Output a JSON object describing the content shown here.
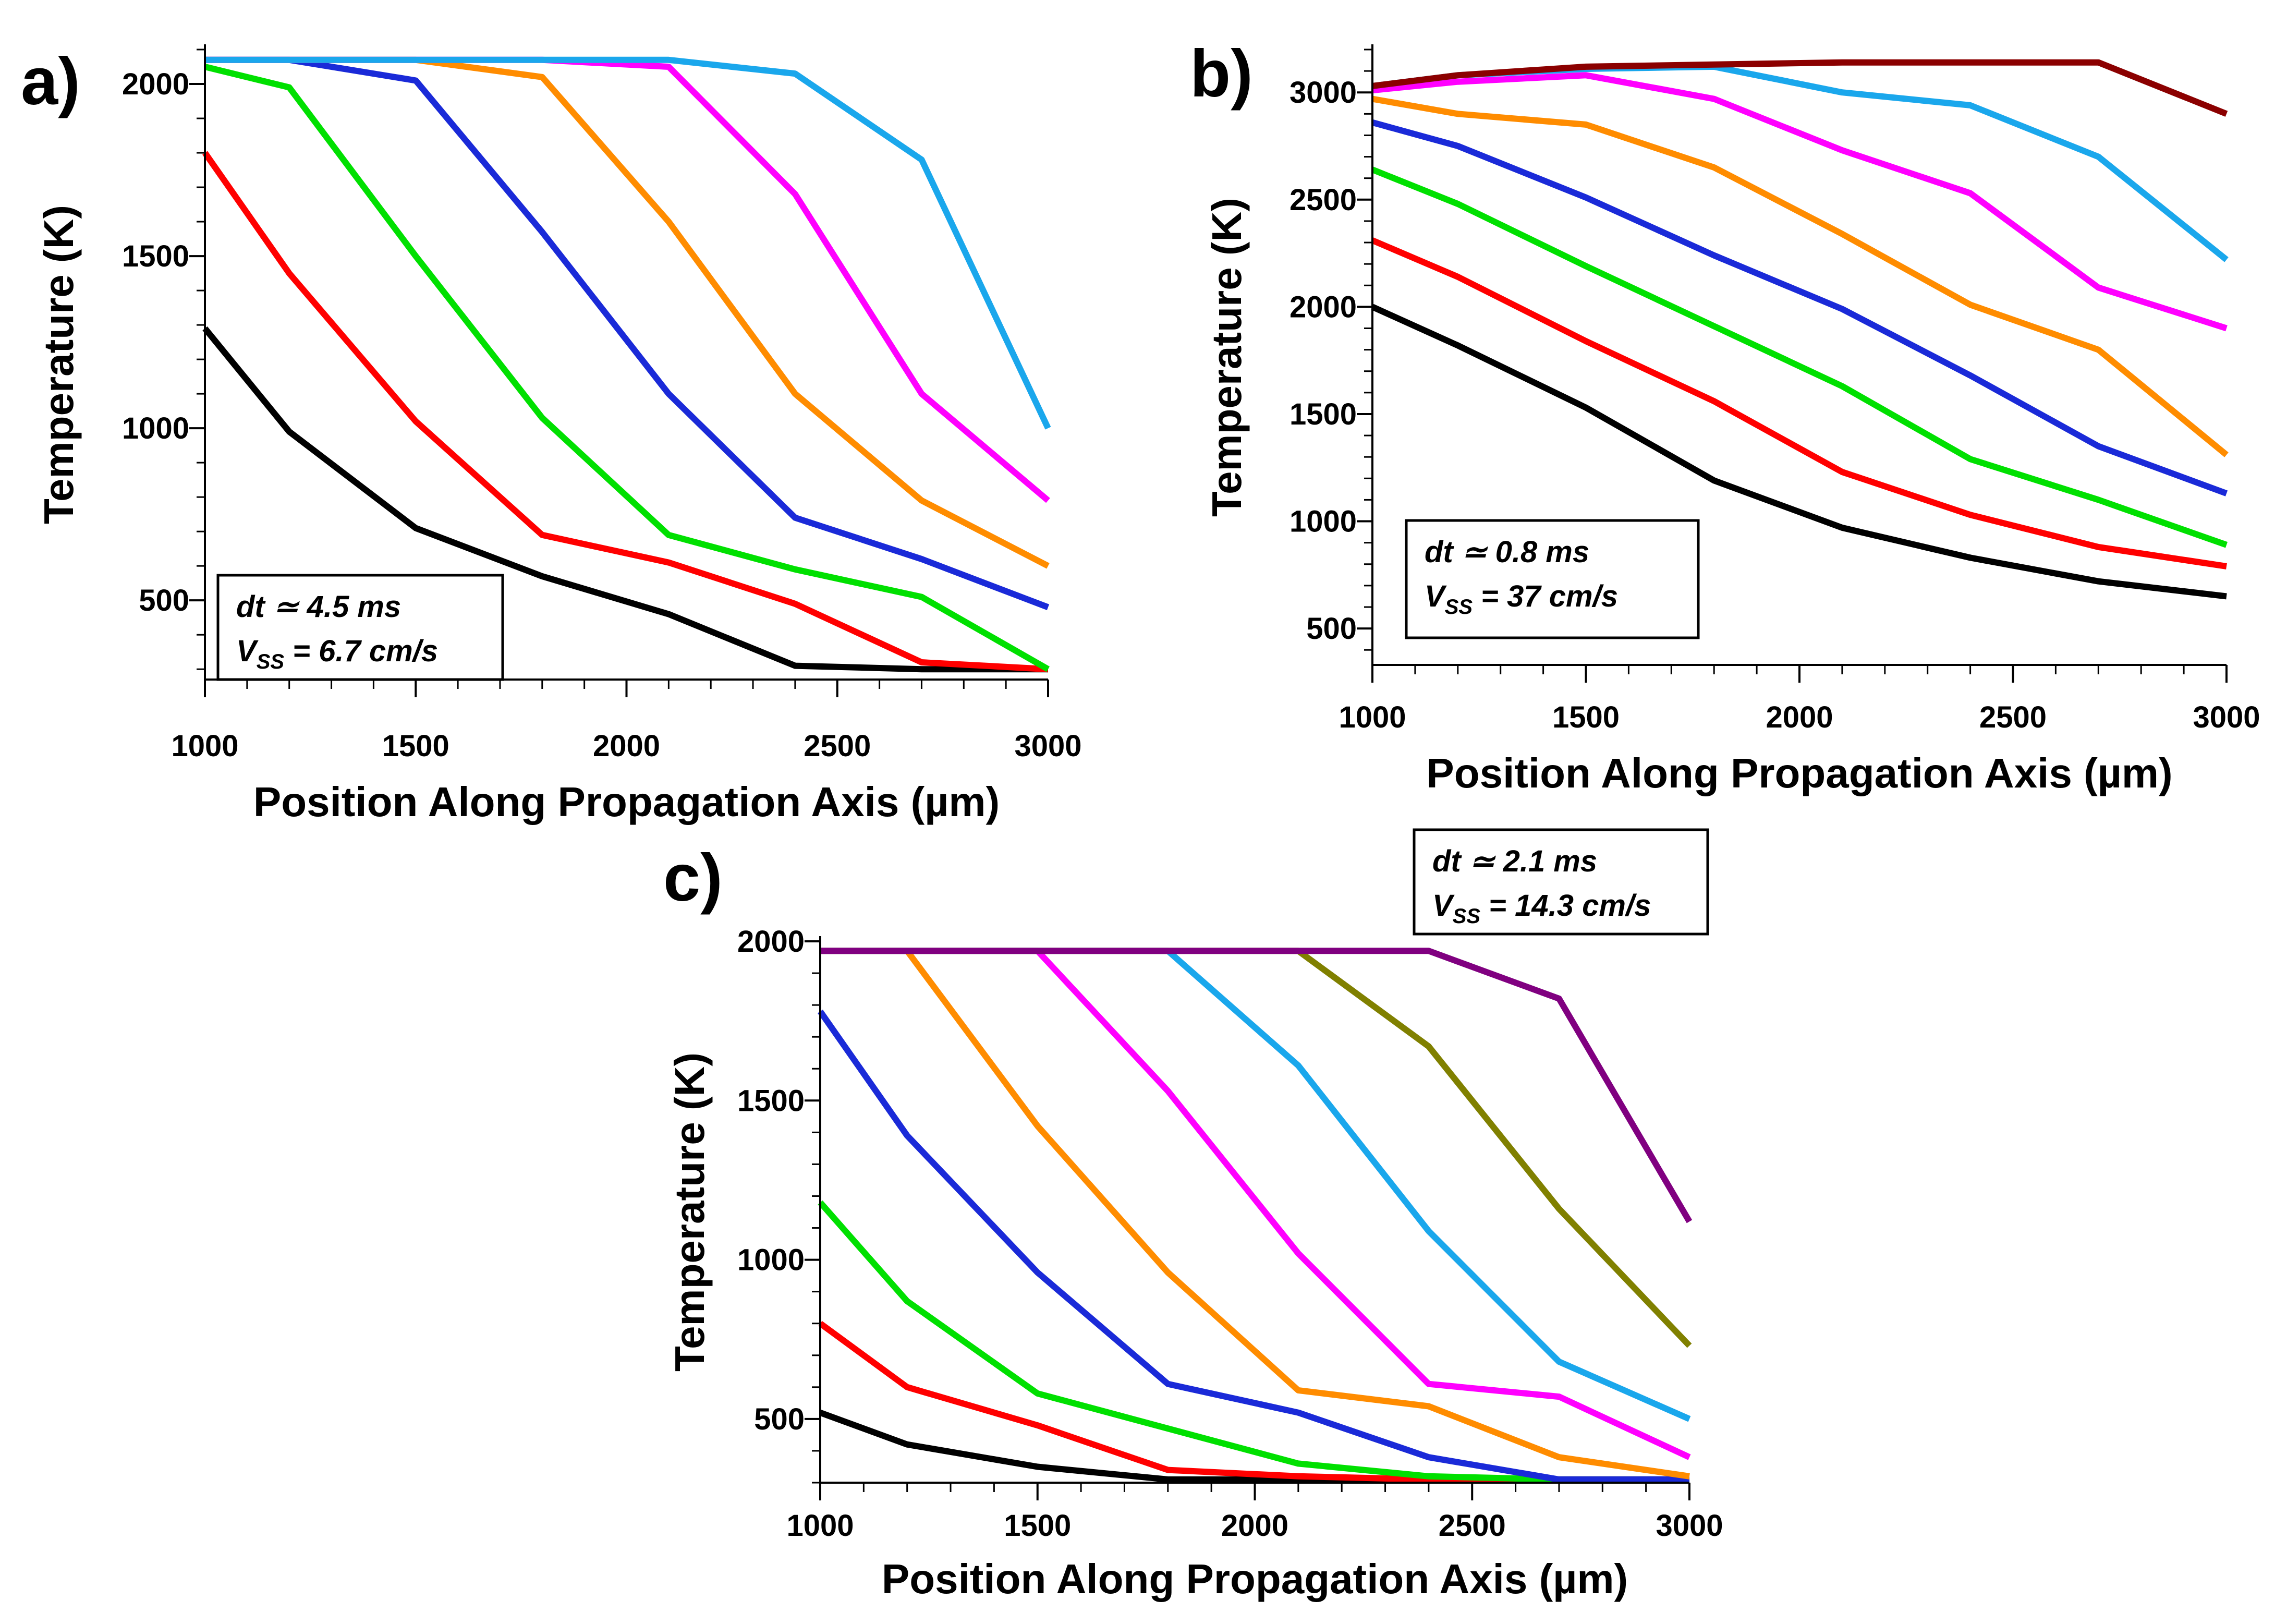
{
  "chart_data": [
    {
      "panel": "a)",
      "type": "line",
      "xlabel": "Position Along Propagation Axis (µm)",
      "ylabel": "Temperature (K)",
      "xlim": [
        1000,
        3000
      ],
      "ylim": [
        270,
        2100
      ],
      "xticks": [
        1000,
        1500,
        2000,
        2500,
        3000
      ],
      "yticks": [
        500,
        1000,
        1500,
        2000
      ],
      "annotation": {
        "line1": "dt ≃ 4.5 ms",
        "line2_main": "V",
        "line2_sub": "SS",
        "line2_rest": " = 6.7 cm/s"
      },
      "x": [
        1000,
        1200,
        1500,
        1800,
        2100,
        2400,
        2700,
        3000
      ],
      "series": [
        {
          "color": "#000000",
          "values": [
            1290,
            990,
            710,
            570,
            460,
            310,
            300,
            300
          ]
        },
        {
          "color": "#ff0000",
          "values": [
            1800,
            1450,
            1020,
            690,
            610,
            490,
            320,
            300
          ]
        },
        {
          "color": "#00e000",
          "values": [
            2050,
            1990,
            1500,
            1030,
            690,
            590,
            510,
            300
          ]
        },
        {
          "color": "#1a2ad8",
          "values": [
            2070,
            2070,
            2010,
            1570,
            1100,
            740,
            620,
            480
          ]
        },
        {
          "color": "#ff8c00",
          "values": [
            2070,
            2070,
            2070,
            2020,
            1600,
            1100,
            790,
            600
          ]
        },
        {
          "color": "#ff00ff",
          "values": [
            2070,
            2070,
            2070,
            2070,
            2050,
            1680,
            1100,
            790
          ]
        },
        {
          "color": "#1aa7ec",
          "values": [
            2070,
            2070,
            2070,
            2070,
            2070,
            2030,
            1780,
            1000
          ]
        }
      ]
    },
    {
      "panel": "b)",
      "type": "line",
      "xlabel": "Position Along Propagation Axis (µm)",
      "ylabel": "Temperature (K)",
      "xlim": [
        1000,
        3000
      ],
      "ylim": [
        330,
        3200
      ],
      "xticks": [
        1000,
        1500,
        2000,
        2500,
        3000
      ],
      "yticks": [
        500,
        1000,
        1500,
        2000,
        2500,
        3000
      ],
      "annotation": {
        "line1": "dt ≃ 0.8 ms",
        "line2_main": "V",
        "line2_sub": "SS",
        "line2_rest": " = 37 cm/s"
      },
      "x": [
        1000,
        1200,
        1500,
        1800,
        2100,
        2400,
        2700,
        3000
      ],
      "series": [
        {
          "color": "#000000",
          "values": [
            2000,
            1820,
            1530,
            1190,
            970,
            830,
            720,
            650
          ]
        },
        {
          "color": "#ff0000",
          "values": [
            2310,
            2140,
            1840,
            1560,
            1230,
            1030,
            880,
            790
          ]
        },
        {
          "color": "#00e000",
          "values": [
            2640,
            2480,
            2190,
            1910,
            1630,
            1290,
            1100,
            890
          ]
        },
        {
          "color": "#1a2ad8",
          "values": [
            2860,
            2750,
            2510,
            2240,
            1990,
            1680,
            1350,
            1130
          ]
        },
        {
          "color": "#ff8c00",
          "values": [
            2970,
            2900,
            2850,
            2650,
            2340,
            2010,
            1800,
            1310
          ]
        },
        {
          "color": "#ff00ff",
          "values": [
            3010,
            3050,
            3080,
            2970,
            2730,
            2530,
            2090,
            1900
          ]
        },
        {
          "color": "#1aa7ec",
          "values": [
            3030,
            3080,
            3110,
            3120,
            3000,
            2940,
            2700,
            2220
          ]
        },
        {
          "color": "#8b0000",
          "values": [
            3030,
            3080,
            3120,
            3130,
            3140,
            3140,
            3140,
            2900
          ]
        }
      ]
    },
    {
      "panel": "c)",
      "type": "line",
      "xlabel": "Position Along Propagation Axis (µm)",
      "ylabel": "Temperature (K)",
      "xlim": [
        1000,
        3000
      ],
      "ylim": [
        300,
        2000
      ],
      "xticks": [
        1000,
        1500,
        2000,
        2500,
        3000
      ],
      "xticklabels": [
        "1000",
        "1500",
        "2000",
        "2500",
        "3000"
      ],
      "yticks": [
        500,
        1000,
        1500,
        2000
      ],
      "annotation": {
        "line1": "dt ≃ 2.1 ms",
        "line2_main": "V",
        "line2_sub": "SS",
        "line2_rest": " = 14.3 cm/s"
      },
      "x": [
        1000,
        1200,
        1500,
        1800,
        2100,
        2400,
        2700,
        3000
      ],
      "series": [
        {
          "color": "#000000",
          "values": [
            520,
            420,
            350,
            310,
            310,
            310,
            310,
            310
          ]
        },
        {
          "color": "#ff0000",
          "values": [
            800,
            600,
            480,
            340,
            320,
            310,
            310,
            310
          ]
        },
        {
          "color": "#00e000",
          "values": [
            1180,
            870,
            580,
            470,
            360,
            320,
            310,
            310
          ]
        },
        {
          "color": "#1a2ad8",
          "values": [
            1780,
            1390,
            960,
            610,
            520,
            380,
            310,
            310
          ]
        },
        {
          "color": "#ff8c00",
          "values": [
            1970,
            1970,
            1420,
            960,
            590,
            540,
            380,
            320
          ]
        },
        {
          "color": "#ff00ff",
          "values": [
            1970,
            1970,
            1970,
            1530,
            1020,
            610,
            570,
            380
          ]
        },
        {
          "color": "#1aa7ec",
          "values": [
            1970,
            1970,
            1970,
            1970,
            1610,
            1090,
            680,
            500
          ]
        },
        {
          "color": "#808000",
          "values": [
            1970,
            1970,
            1970,
            1970,
            1970,
            1670,
            1160,
            730
          ]
        },
        {
          "color": "#800080",
          "values": [
            1970,
            1970,
            1970,
            1970,
            1970,
            1970,
            1820,
            1120
          ]
        }
      ]
    }
  ]
}
